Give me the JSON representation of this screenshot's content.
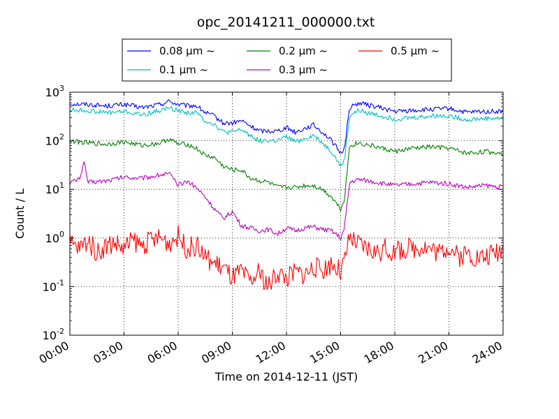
{
  "chart_data": {
    "type": "line",
    "title": "opc_20141211_000000.txt",
    "xlabel": "Time on 2014-12-11 (JST)",
    "ylabel": "Count / L",
    "x_unit": "hours (JST)",
    "xlim": [
      0,
      24
    ],
    "ylim": [
      0.01,
      1000
    ],
    "y_scale": "log",
    "grid": true,
    "grid_style": "dotted",
    "legend_placement": "top-center, above plot",
    "x_ticks": [
      0,
      3,
      6,
      9,
      12,
      15,
      18,
      21,
      24
    ],
    "x_tick_labels": [
      "00:00",
      "03:00",
      "06:00",
      "09:00",
      "12:00",
      "15:00",
      "18:00",
      "21:00",
      "24:00"
    ],
    "y_ticks": [
      {
        "value": 0.01,
        "base": "10",
        "exp": "-2"
      },
      {
        "value": 0.1,
        "base": "10",
        "exp": "-1"
      },
      {
        "value": 1,
        "base": "10",
        "exp": "0"
      },
      {
        "value": 10,
        "base": "10",
        "exp": "1"
      },
      {
        "value": 100,
        "base": "10",
        "exp": "2"
      },
      {
        "value": 1000,
        "base": "10",
        "exp": "3"
      }
    ],
    "series": [
      {
        "name": "0.08 μm ~",
        "color": "#0000ff",
        "x": [
          0,
          1,
          2,
          3,
          4,
          5,
          5.5,
          6,
          6.5,
          7,
          7.5,
          8,
          8.5,
          9,
          9.5,
          10,
          10.5,
          11,
          11.5,
          12,
          12.5,
          13,
          13.5,
          14,
          14.5,
          15,
          15.2,
          15.5,
          16,
          17,
          18,
          19,
          20,
          21,
          22,
          23,
          24
        ],
        "y": [
          580,
          560,
          520,
          560,
          480,
          560,
          650,
          560,
          520,
          530,
          380,
          320,
          230,
          230,
          260,
          200,
          160,
          160,
          160,
          190,
          150,
          180,
          210,
          150,
          100,
          55,
          70,
          480,
          600,
          500,
          400,
          420,
          440,
          460,
          380,
          400,
          400
        ]
      },
      {
        "name": "0.1 μm ~",
        "color": "#00bfbf",
        "x": [
          0,
          1,
          2,
          3,
          4,
          5,
          5.5,
          6,
          6.5,
          7,
          7.5,
          8,
          8.5,
          9,
          9.5,
          10,
          10.5,
          11,
          11.5,
          12,
          12.5,
          13,
          13.5,
          14,
          14.5,
          15,
          15.2,
          15.5,
          16,
          17,
          18,
          19,
          20,
          21,
          22,
          23,
          24
        ],
        "y": [
          430,
          420,
          380,
          400,
          340,
          420,
          480,
          420,
          380,
          380,
          260,
          220,
          150,
          150,
          170,
          130,
          100,
          100,
          100,
          120,
          95,
          110,
          130,
          90,
          60,
          30,
          38,
          330,
          420,
          340,
          280,
          300,
          320,
          330,
          270,
          290,
          290
        ]
      },
      {
        "name": "0.2 μm ~",
        "color": "#008000",
        "x": [
          0,
          1,
          2,
          3,
          4,
          5,
          5.5,
          6,
          6.5,
          7,
          7.5,
          8,
          8.5,
          9,
          9.5,
          10,
          10.5,
          11,
          11.5,
          12,
          12.5,
          13,
          13.5,
          14,
          14.5,
          15,
          15.2,
          15.5,
          16,
          17,
          18,
          19,
          20,
          21,
          22,
          23,
          24
        ],
        "y": [
          100,
          90,
          85,
          95,
          80,
          90,
          110,
          85,
          85,
          70,
          50,
          45,
          30,
          25,
          25,
          17,
          15,
          14,
          11,
          11,
          11,
          12,
          12,
          10,
          7,
          4,
          6,
          80,
          90,
          75,
          60,
          70,
          75,
          70,
          55,
          60,
          55
        ]
      },
      {
        "name": "0.3 μm ~",
        "color": "#bf00bf",
        "x": [
          0,
          0.5,
          0.8,
          1,
          2,
          3,
          4,
          5,
          5.5,
          6,
          6.5,
          7,
          7.5,
          8,
          8.5,
          9,
          9.5,
          10,
          10.5,
          11,
          11.5,
          12,
          12.5,
          13,
          13.5,
          14,
          14.5,
          15,
          15.2,
          15.5,
          16,
          17,
          18,
          19,
          20,
          21,
          22,
          23,
          24
        ],
        "y": [
          14,
          16,
          35,
          14,
          15,
          18,
          17,
          20,
          21,
          12,
          15,
          11,
          7,
          4,
          2.5,
          3.5,
          1.8,
          1.6,
          1.4,
          1.5,
          1.2,
          1.6,
          1.4,
          1.6,
          1.7,
          1.5,
          1.4,
          1.0,
          1.5,
          14,
          16,
          14,
          12,
          13,
          14,
          13,
          11,
          12,
          11
        ]
      },
      {
        "name": "0.5 μm ~",
        "color": "#ff0000",
        "x": [
          0,
          0.5,
          1,
          1.5,
          2,
          2.5,
          3,
          3.5,
          4,
          4.5,
          5,
          5.5,
          6,
          6.5,
          7,
          7.5,
          8,
          8.5,
          9,
          9.5,
          10,
          10.5,
          11,
          11.5,
          12,
          12.5,
          13,
          13.5,
          14,
          14.5,
          15,
          15.2,
          15.5,
          16,
          16.5,
          17,
          17.5,
          18,
          18.5,
          19,
          19.5,
          20,
          20.5,
          21,
          21.5,
          22,
          22.5,
          23,
          23.5,
          24
        ],
        "y": [
          0.8,
          0.6,
          0.9,
          0.5,
          0.7,
          0.8,
          0.6,
          0.9,
          0.7,
          0.9,
          1.0,
          0.8,
          1.1,
          0.6,
          0.7,
          0.4,
          0.3,
          0.25,
          0.15,
          0.2,
          0.12,
          0.2,
          0.1,
          0.2,
          0.15,
          0.2,
          0.18,
          0.25,
          0.22,
          0.3,
          0.2,
          0.3,
          1.0,
          0.7,
          0.6,
          0.5,
          0.6,
          0.5,
          0.6,
          0.6,
          0.7,
          0.6,
          0.5,
          0.7,
          0.4,
          0.5,
          0.4,
          0.4,
          0.5,
          0.6
        ]
      }
    ]
  }
}
